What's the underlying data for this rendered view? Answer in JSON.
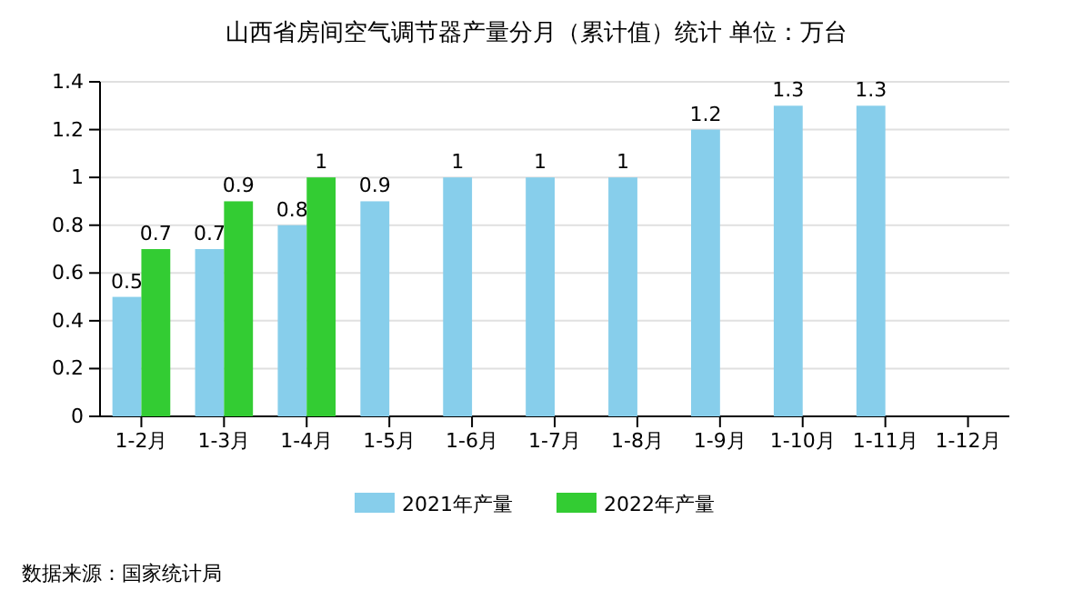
{
  "chart_data": {
    "type": "bar",
    "title": "山西省房间空气调节器产量分月（累计值）统计  单位：万台",
    "categories": [
      "1-2月",
      "1-3月",
      "1-4月",
      "1-5月",
      "1-6月",
      "1-7月",
      "1-8月",
      "1-9月",
      "1-10月",
      "1-11月",
      "1-12月"
    ],
    "series": [
      {
        "name": "2021年产量",
        "color": "#87ceeb",
        "values": [
          0.5,
          0.7,
          0.8,
          0.9,
          1,
          1,
          1,
          1.2,
          1.3,
          1.3,
          null
        ]
      },
      {
        "name": "2022年产量",
        "color": "#33cc33",
        "values": [
          0.7,
          0.9,
          1,
          null,
          null,
          null,
          null,
          null,
          null,
          null,
          null
        ]
      }
    ],
    "ylim": [
      0,
      1.4
    ],
    "yticks": [
      0,
      0.2,
      0.4,
      0.6,
      0.8,
      1,
      1.2,
      1.4
    ],
    "grid": "y",
    "legend": "bottom",
    "data_labels": true,
    "annotations": [
      "数据来源：国家统计局"
    ]
  }
}
